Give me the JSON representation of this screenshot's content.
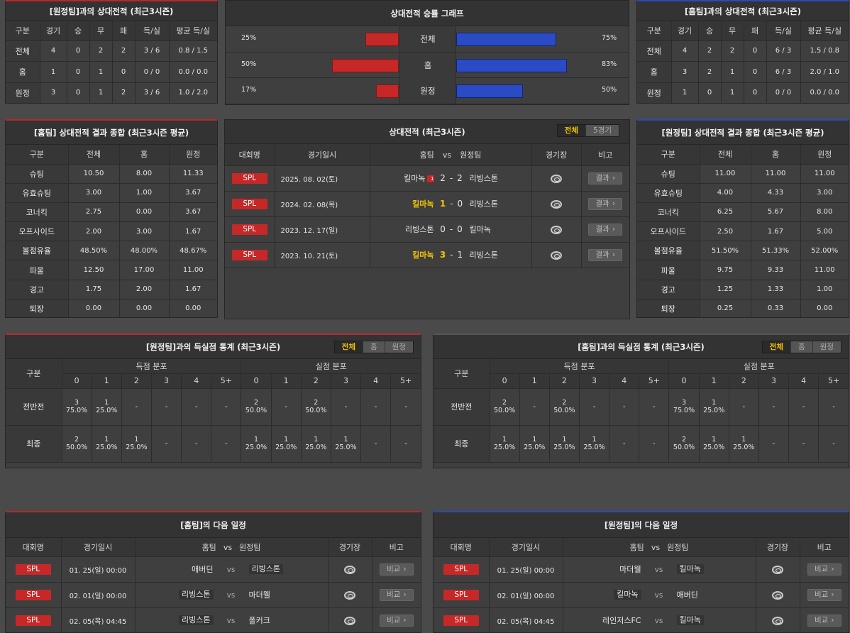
{
  "h2h_away": {
    "title": "[원정팀]과의 상대전적 (최근3시즌)",
    "headers": [
      "구분",
      "경기",
      "승",
      "무",
      "패",
      "득/실",
      "평균 득/실"
    ],
    "rows": [
      [
        "전체",
        "4",
        "0",
        "2",
        "2",
        "3 / 6",
        "0.8 / 1.5"
      ],
      [
        "홈",
        "1",
        "0",
        "1",
        "0",
        "0 / 0",
        "0.0 / 0.0"
      ],
      [
        "원정",
        "3",
        "0",
        "1",
        "2",
        "3 / 6",
        "1.0 / 2.0"
      ]
    ]
  },
  "h2h_home": {
    "title": "[홈팀]과의 상대전적 (최근3시즌)",
    "headers": [
      "구분",
      "경기",
      "승",
      "무",
      "패",
      "득/실",
      "평균 득/실"
    ],
    "rows": [
      [
        "전체",
        "4",
        "2",
        "2",
        "0",
        "6 / 3",
        "1.5 / 0.8"
      ],
      [
        "홈",
        "3",
        "2",
        "1",
        "0",
        "6 / 3",
        "2.0 / 1.0"
      ],
      [
        "원정",
        "1",
        "0",
        "1",
        "0",
        "0 / 0",
        "0.0 / 0.0"
      ]
    ]
  },
  "graph": {
    "title": "상대전적 승률 그래프",
    "rows": [
      {
        "label": "전체",
        "left_text": "25%",
        "left": 0.25,
        "right_text": "75%",
        "right": 0.75
      },
      {
        "label": "홈",
        "left_text": "50%",
        "left": 0.5,
        "right_text": "83%",
        "right": 0.83
      },
      {
        "label": "원정",
        "left_text": "17%",
        "left": 0.17,
        "right_text": "50%",
        "right": 0.5
      }
    ]
  },
  "summary_home": {
    "title": "[홈팀] 상대전적 결과 종합 (최근3시즌 평균)",
    "headers": [
      "구분",
      "전체",
      "홈",
      "원정"
    ],
    "rows": [
      [
        "슈팅",
        "10.50",
        "8.00",
        "11.33"
      ],
      [
        "유효슈팅",
        "3.00",
        "1.00",
        "3.67"
      ],
      [
        "코너킥",
        "2.75",
        "0.00",
        "3.67"
      ],
      [
        "오프사이드",
        "2.00",
        "3.00",
        "1.67"
      ],
      [
        "볼점유율",
        "48.50%",
        "48.00%",
        "48.67%"
      ],
      [
        "파울",
        "12.50",
        "17.00",
        "11.00"
      ],
      [
        "경고",
        "1.75",
        "2.00",
        "1.67"
      ],
      [
        "퇴장",
        "0.00",
        "0.00",
        "0.00"
      ]
    ]
  },
  "summary_away": {
    "title": "[원정팀] 상대전적 결과 종합 (최근3시즌 평균)",
    "headers": [
      "구분",
      "전체",
      "홈",
      "원정"
    ],
    "rows": [
      [
        "슈팅",
        "11.00",
        "11.00",
        "11.00"
      ],
      [
        "유효슈팅",
        "4.00",
        "4.33",
        "3.00"
      ],
      [
        "코너킥",
        "6.25",
        "5.67",
        "8.00"
      ],
      [
        "오프사이드",
        "2.50",
        "1.67",
        "5.00"
      ],
      [
        "볼점유율",
        "51.50%",
        "51.33%",
        "52.00%"
      ],
      [
        "파울",
        "9.75",
        "9.33",
        "11.00"
      ],
      [
        "경고",
        "1.25",
        "1.33",
        "1.00"
      ],
      [
        "퇴장",
        "0.25",
        "0.33",
        "0.00"
      ]
    ]
  },
  "matches": {
    "title": "상대전적 (최근3시즌)",
    "tabs": [
      "전체",
      "5경기"
    ],
    "headers": {
      "league": "대회명",
      "date": "경기일시",
      "home": "홈팀",
      "vs": "vs",
      "away": "원정팀",
      "stadium": "경기장",
      "note": "비고"
    },
    "rows": [
      {
        "league": "SPL",
        "date": "2025. 08. 02(토)",
        "home": "킬마녹",
        "badge": "1",
        "hs": "2",
        "sep": "-",
        "as": "2",
        "away": "리빙스톤",
        "home_hl": false,
        "result": "결과"
      },
      {
        "league": "SPL",
        "date": "2024. 02. 08(목)",
        "home": "킬마녹",
        "badge": "",
        "hs": "1",
        "sep": "-",
        "as": "0",
        "away": "리빙스톤",
        "home_hl": true,
        "result": "결과"
      },
      {
        "league": "SPL",
        "date": "2023. 12. 17(일)",
        "home": "리빙스톤",
        "badge": "",
        "hs": "0",
        "sep": "-",
        "as": "0",
        "away": "킬마녹",
        "home_hl": false,
        "result": "결과"
      },
      {
        "league": "SPL",
        "date": "2023. 10. 21(토)",
        "home": "킬마녹",
        "badge": "",
        "hs": "3",
        "sep": "-",
        "as": "1",
        "away": "리빙스톤",
        "home_hl": true,
        "result": "결과"
      }
    ]
  },
  "goals_away": {
    "title": "[원정팀]과의 득실점 통계 (최근3시즌)",
    "tabs": [
      "전체",
      "홈",
      "원정"
    ],
    "gubun": "구분",
    "group_scored": "득점 분포",
    "group_conceded": "실점 분포",
    "cols": [
      "0",
      "1",
      "2",
      "3",
      "4",
      "5+"
    ],
    "rows": [
      {
        "label": "전반전",
        "scored": [
          [
            "3",
            "75.0%"
          ],
          [
            "1",
            "25.0%"
          ],
          [
            "-",
            ""
          ],
          [
            "-",
            ""
          ],
          [
            "-",
            ""
          ],
          [
            "-",
            ""
          ]
        ],
        "conceded": [
          [
            "2",
            "50.0%"
          ],
          [
            "-",
            ""
          ],
          [
            "2",
            "50.0%"
          ],
          [
            "-",
            ""
          ],
          [
            "-",
            ""
          ],
          [
            "-",
            ""
          ]
        ]
      },
      {
        "label": "최종",
        "scored": [
          [
            "2",
            "50.0%"
          ],
          [
            "1",
            "25.0%"
          ],
          [
            "1",
            "25.0%"
          ],
          [
            "-",
            ""
          ],
          [
            "-",
            ""
          ],
          [
            "-",
            ""
          ]
        ],
        "conceded": [
          [
            "1",
            "25.0%"
          ],
          [
            "1",
            "25.0%"
          ],
          [
            "1",
            "25.0%"
          ],
          [
            "1",
            "25.0%"
          ],
          [
            "-",
            ""
          ],
          [
            "-",
            ""
          ]
        ]
      }
    ]
  },
  "goals_home": {
    "title": "[홈팀]과의 득실점 통계 (최근3시즌)",
    "tabs": [
      "전체",
      "홈",
      "원정"
    ],
    "gubun": "구분",
    "group_scored": "득점 분포",
    "group_conceded": "실점 분포",
    "cols": [
      "0",
      "1",
      "2",
      "3",
      "4",
      "5+"
    ],
    "rows": [
      {
        "label": "전반전",
        "scored": [
          [
            "2",
            "50.0%"
          ],
          [
            "-",
            ""
          ],
          [
            "2",
            "50.0%"
          ],
          [
            "-",
            ""
          ],
          [
            "-",
            ""
          ],
          [
            "-",
            ""
          ]
        ],
        "conceded": [
          [
            "3",
            "75.0%"
          ],
          [
            "1",
            "25.0%"
          ],
          [
            "-",
            ""
          ],
          [
            "-",
            ""
          ],
          [
            "-",
            ""
          ],
          [
            "-",
            ""
          ]
        ]
      },
      {
        "label": "최종",
        "scored": [
          [
            "1",
            "25.0%"
          ],
          [
            "1",
            "25.0%"
          ],
          [
            "1",
            "25.0%"
          ],
          [
            "1",
            "25.0%"
          ],
          [
            "-",
            ""
          ],
          [
            "-",
            ""
          ]
        ],
        "conceded": [
          [
            "2",
            "50.0%"
          ],
          [
            "1",
            "25.0%"
          ],
          [
            "1",
            "25.0%"
          ],
          [
            "-",
            ""
          ],
          [
            "-",
            ""
          ],
          [
            "-",
            ""
          ]
        ]
      }
    ]
  },
  "next_home": {
    "title": "[홈팀]의 다음 일정",
    "headers": {
      "league": "대회명",
      "date": "경기일시",
      "home": "홈팀",
      "vs": "vs",
      "away": "원정팀",
      "stadium": "경기장",
      "note": "비고"
    },
    "rows": [
      {
        "league": "SPL",
        "date": "01. 25(일) 00:00",
        "home": "애버딘",
        "home_box": false,
        "vs": "vs",
        "away": "리빙스톤",
        "away_box": true,
        "note": "비교"
      },
      {
        "league": "SPL",
        "date": "02. 01(일) 00:00",
        "home": "리빙스톤",
        "home_box": true,
        "vs": "vs",
        "away": "마더웰",
        "away_box": false,
        "note": "비교"
      },
      {
        "league": "SPL",
        "date": "02. 05(목) 04:45",
        "home": "리빙스톤",
        "home_box": true,
        "vs": "vs",
        "away": "폴커크",
        "away_box": false,
        "note": "비교"
      }
    ]
  },
  "next_away": {
    "title": "[원정팀]의 다음 일정",
    "headers": {
      "league": "대회명",
      "date": "경기일시",
      "home": "홈팀",
      "vs": "vs",
      "away": "원정팀",
      "stadium": "경기장",
      "note": "비고"
    },
    "rows": [
      {
        "league": "SPL",
        "date": "01. 25(일) 00:00",
        "home": "마더웰",
        "home_box": false,
        "vs": "vs",
        "away": "킬마녹",
        "away_box": true,
        "note": "비교"
      },
      {
        "league": "SPL",
        "date": "02. 01(일) 00:00",
        "home": "킬마녹",
        "home_box": true,
        "vs": "vs",
        "away": "애버딘",
        "away_box": false,
        "note": "비교"
      },
      {
        "league": "SPL",
        "date": "02. 05(목) 04:45",
        "home": "레인저스FC",
        "home_box": false,
        "vs": "vs",
        "away": "킬마녹",
        "away_box": true,
        "note": "비교"
      }
    ]
  }
}
